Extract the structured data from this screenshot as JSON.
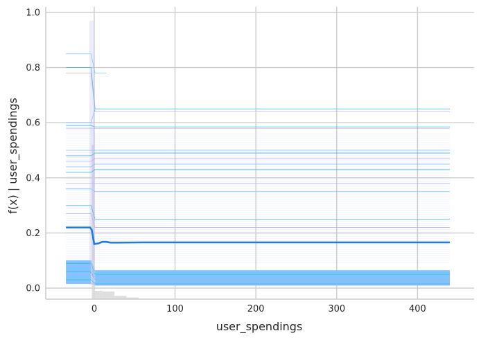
{
  "chart_data": {
    "type": "line",
    "title": "",
    "xlabel": "user_spendings",
    "ylabel": "f(x) | user_spendings",
    "xlim": [
      -60,
      470
    ],
    "ylim": [
      -0.04,
      1.02
    ],
    "xticks": [
      0,
      100,
      200,
      300,
      400
    ],
    "yticks": [
      0.0,
      0.2,
      0.4,
      0.6,
      0.8,
      1.0
    ],
    "xtick_labels": [
      "0",
      "100",
      "200",
      "300",
      "400"
    ],
    "ytick_labels": [
      "0.0",
      "0.2",
      "0.4",
      "0.6",
      "0.8",
      "1.0"
    ],
    "grid": true,
    "colors": {
      "mean_line": "#1e7be0",
      "ice_blue": "#7ec4ff",
      "ice_purple": "#b9b3f5",
      "ice_teal": "#41b7d8",
      "histogram": "#d9d9d9",
      "grid": "#cccccc",
      "axis_text": "#262626"
    },
    "mean_curve": {
      "name": "",
      "x": [
        -35,
        -5,
        -3,
        0,
        5,
        10,
        15,
        20,
        30,
        60,
        100,
        200,
        300,
        440
      ],
      "y": [
        0.22,
        0.22,
        0.21,
        0.16,
        0.162,
        0.168,
        0.168,
        0.165,
        0.165,
        0.166,
        0.166,
        0.166,
        0.166,
        0.166
      ]
    },
    "ice_curves": [
      {
        "left": 0.85,
        "right": 0.78,
        "x_end": 15
      },
      {
        "left": 0.8,
        "right": 0.65
      },
      {
        "left": 0.78,
        "right": 0.64
      },
      {
        "left": 0.6,
        "right": 0.65
      },
      {
        "left": 0.59,
        "right": 0.585
      },
      {
        "left": 0.58,
        "right": 0.58
      },
      {
        "left": 0.5,
        "right": 0.5
      },
      {
        "left": 0.48,
        "right": 0.49
      },
      {
        "left": 0.46,
        "right": 0.47
      },
      {
        "left": 0.44,
        "right": 0.45
      },
      {
        "left": 0.42,
        "right": 0.43
      },
      {
        "left": 0.38,
        "right": 0.38
      },
      {
        "left": 0.36,
        "right": 0.35
      },
      {
        "left": 0.3,
        "right": 0.25
      },
      {
        "left": 0.27,
        "right": 0.22
      },
      {
        "left": 0.1,
        "right": 0.06
      },
      {
        "left": 0.09,
        "right": 0.05
      },
      {
        "left": 0.08,
        "right": 0.04
      },
      {
        "left": 0.07,
        "right": 0.04
      },
      {
        "left": 0.06,
        "right": 0.03
      },
      {
        "left": 0.05,
        "right": 0.03
      },
      {
        "left": 0.04,
        "right": 0.02
      },
      {
        "left": 0.03,
        "right": 0.015
      },
      {
        "left": 0.02,
        "right": 0.01
      }
    ],
    "histogram": {
      "bin_edges": [
        -3,
        0,
        10,
        25,
        40,
        55,
        70
      ],
      "heights": [
        0.56,
        0.03,
        0.028,
        0.012,
        0.006,
        0.002
      ]
    }
  }
}
